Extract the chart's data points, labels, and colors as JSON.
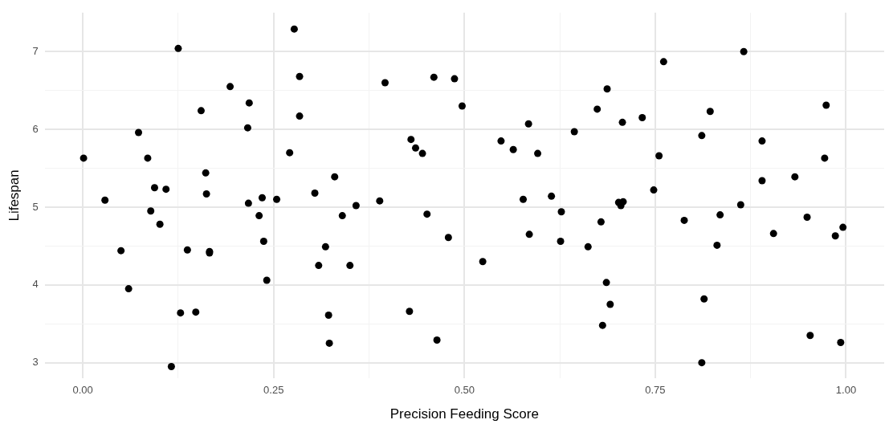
{
  "chart_data": {
    "type": "scatter",
    "xlabel": "Precision Feeding Score",
    "ylabel": "Lifespan",
    "xlim": [
      -0.05,
      1.05
    ],
    "ylim": [
      2.8,
      7.5
    ],
    "xticks": [
      {
        "value": 0,
        "label": "0.00"
      },
      {
        "value": 0.125,
        "label": null
      },
      {
        "value": 0.25,
        "label": "0.25"
      },
      {
        "value": 0.375,
        "label": null
      },
      {
        "value": 0.5,
        "label": "0.50"
      },
      {
        "value": 0.625,
        "label": null
      },
      {
        "value": 0.75,
        "label": "0.75"
      },
      {
        "value": 0.875,
        "label": null
      },
      {
        "value": 1,
        "label": "1.00"
      }
    ],
    "yticks": [
      3,
      {
        "value": 3.5,
        "label": null
      },
      4,
      {
        "value": 4.5,
        "label": null
      },
      5,
      {
        "value": 5.5,
        "label": null
      },
      6,
      {
        "value": 6.5,
        "label": null
      },
      7
    ],
    "grid": true,
    "legend": false,
    "marker": "circle",
    "series": [
      {
        "color": "#000000",
        "x": [
          0.001,
          0.029,
          0.05,
          0.06,
          0.073,
          0.085,
          0.089,
          0.094,
          0.101,
          0.109,
          0.116,
          0.125,
          0.128,
          0.137,
          0.148,
          0.155,
          0.161,
          0.162,
          0.166,
          0.166,
          0.193,
          0.216,
          0.218,
          0.217,
          0.231,
          0.235,
          0.237,
          0.241,
          0.254,
          0.271,
          0.277,
          0.284,
          0.284,
          0.304,
          0.309,
          0.318,
          0.322,
          0.323,
          0.33,
          0.34,
          0.35,
          0.358,
          0.389,
          0.396,
          0.428,
          0.43,
          0.436,
          0.445,
          0.451,
          0.46,
          0.464,
          0.479,
          0.487,
          0.497,
          0.524,
          0.548,
          0.564,
          0.577,
          0.584,
          0.585,
          0.596,
          0.614,
          0.626,
          0.627,
          0.644,
          0.662,
          0.674,
          0.679,
          0.681,
          0.686,
          0.687,
          0.691,
          0.702,
          0.705,
          0.708,
          0.707,
          0.733,
          0.748,
          0.755,
          0.761,
          0.788,
          0.811,
          0.811,
          0.814,
          0.822,
          0.831,
          0.835,
          0.862,
          0.866,
          0.89,
          0.89,
          0.905,
          0.933,
          0.949,
          0.953,
          0.972,
          0.974,
          0.986,
          0.993,
          0.996
        ],
        "values": [
          5.63,
          5.09,
          4.44,
          3.95,
          5.96,
          5.63,
          4.95,
          5.25,
          4.78,
          5.23,
          2.95,
          7.04,
          3.64,
          4.45,
          3.65,
          6.24,
          5.44,
          5.17,
          4.43,
          4.41,
          6.55,
          6.02,
          6.34,
          5.05,
          4.89,
          5.12,
          4.56,
          4.06,
          5.1,
          5.7,
          7.29,
          6.68,
          6.17,
          5.18,
          4.25,
          4.49,
          3.61,
          3.25,
          5.39,
          4.89,
          4.25,
          5.02,
          5.08,
          6.6,
          3.66,
          5.87,
          5.76,
          5.69,
          4.91,
          6.67,
          3.29,
          4.61,
          6.65,
          6.3,
          4.3,
          5.85,
          5.74,
          5.1,
          6.07,
          4.65,
          5.69,
          5.14,
          4.56,
          4.94,
          5.97,
          4.49,
          6.26,
          4.81,
          3.48,
          4.03,
          6.52,
          3.75,
          5.06,
          5.02,
          5.07,
          6.09,
          6.15,
          5.22,
          5.66,
          6.87,
          4.83,
          5.92,
          3.0,
          3.82,
          6.23,
          4.51,
          4.9,
          5.03,
          7.0,
          5.85,
          5.34,
          4.66,
          5.39,
          4.87,
          3.35,
          5.63,
          6.31,
          4.63,
          3.26,
          4.74
        ]
      }
    ]
  }
}
